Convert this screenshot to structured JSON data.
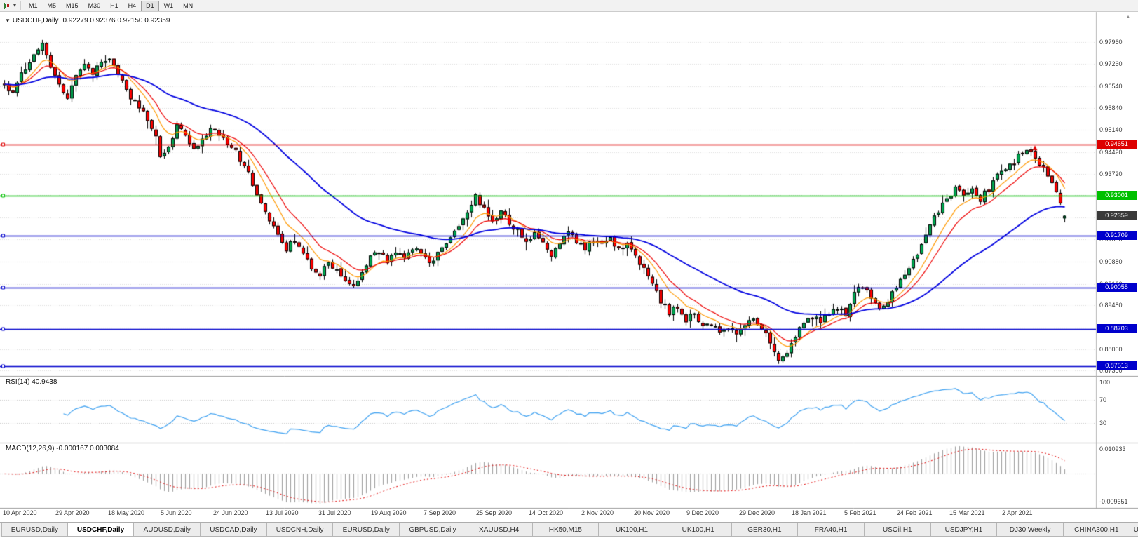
{
  "toolbar": {
    "chart_icon": "candlestick-chart",
    "caret_glyph": "▾",
    "timeframes": [
      "M1",
      "M5",
      "M15",
      "M30",
      "H1",
      "H4",
      "D1",
      "W1",
      "MN"
    ],
    "active": "D1"
  },
  "chart_header": {
    "marker_glyph": "▼",
    "title": "USDCHF,Daily",
    "ohlc": "0.92279 0.92376 0.92150 0.92359"
  },
  "price_scale": {
    "ticks": [
      "0.97960",
      "0.97260",
      "0.96540",
      "0.95840",
      "0.95140",
      "0.94420",
      "0.93720",
      "0.93020",
      "0.92300",
      "0.91600",
      "0.90880",
      "0.90160",
      "0.89480",
      "0.88760",
      "0.88060",
      "0.87380"
    ],
    "current_badge": {
      "label": "0.92359",
      "bg": "#3a3a3a"
    },
    "scroll_icon_glyph": "▴"
  },
  "rsi_panel": {
    "label": "RSI(14) 40.9438",
    "scale_labels": [
      "100",
      "70",
      "30"
    ],
    "scale_values": [
      100,
      70,
      30
    ],
    "levels": [
      70,
      30
    ],
    "line_color": "#3da0f0"
  },
  "macd_panel": {
    "label": "MACD(12,26,9) -0.000167 0.003084",
    "scale_top": "0.010933",
    "scale_bottom": "-0.009651",
    "bar_color": "#9b9b9b",
    "signal_color": "#e00000",
    "zero_line_color": "#c8c8c8"
  },
  "tabs": [
    {
      "label": "EURUSD,Daily"
    },
    {
      "label": "USDCHF,Daily",
      "active": true
    },
    {
      "label": "AUDUSD,Daily"
    },
    {
      "label": "USDCAD,Daily"
    },
    {
      "label": "USDCNH,Daily"
    },
    {
      "label": "EURUSD,Daily"
    },
    {
      "label": "GBPUSD,Daily"
    },
    {
      "label": "XAUUSD,H4"
    },
    {
      "label": "HK50,M15"
    },
    {
      "label": "UK100,H1"
    },
    {
      "label": "UK100,H1"
    },
    {
      "label": "GER30,H1"
    },
    {
      "label": "FRA40,H1"
    },
    {
      "label": "USOil,H1"
    },
    {
      "label": "USDJPY,H1"
    },
    {
      "label": "DJ30,Weekly"
    },
    {
      "label": "CHINA300,H1"
    },
    {
      "label": "U",
      "truncated": true
    }
  ],
  "chart_data": {
    "type": "candlestick",
    "symbol": "USDCHF",
    "timeframe": "Daily",
    "last_ohlc": {
      "open": 0.92279,
      "high": 0.92376,
      "low": 0.9215,
      "close": 0.92359
    },
    "n_candles": 253,
    "x_tick_labels": [
      "10 Apr 2020",
      "29 Apr 2020",
      "18 May 2020",
      "5 Jun 2020",
      "24 Jun 2020",
      "13 Jul 2020",
      "31 Jul 2020",
      "19 Aug 2020",
      "7 Sep 2020",
      "25 Sep 2020",
      "14 Oct 2020",
      "2 Nov 2020",
      "20 Nov 2020",
      "9 Dec 2020",
      "29 Dec 2020",
      "18 Jan 2021",
      "5 Feb 2021",
      "24 Feb 2021",
      "15 Mar 2021",
      "2 Apr 2021"
    ],
    "y_ticks": [
      0.9796,
      0.9726,
      0.9654,
      0.9584,
      0.9514,
      0.9442,
      0.9372,
      0.9302,
      0.923,
      0.916,
      0.9088,
      0.9016,
      0.8948,
      0.8876,
      0.8806,
      0.8738
    ],
    "up_color": "#00a651",
    "down_color": "#ff0000",
    "outline_color": "#000000",
    "moving_averages": [
      {
        "period": 8,
        "color": "#ff9900"
      },
      {
        "period": 13,
        "color": "#ee0000"
      },
      {
        "period": 45,
        "color": "#0000e0"
      }
    ],
    "horizontal_lines": [
      {
        "price": 0.94651,
        "label": "0.94651",
        "color": "#dd0000"
      },
      {
        "price": 0.93001,
        "label": "0.93001",
        "color": "#00c000"
      },
      {
        "price": 0.91709,
        "label": "0.91709",
        "color": "#0000cc"
      },
      {
        "price": 0.90055,
        "label": "0.90055",
        "color": "#0000cc"
      },
      {
        "price": 0.88703,
        "label": "0.88703",
        "color": "#0000cc"
      },
      {
        "price": 0.87513,
        "label": "0.87513",
        "color": "#0000cc"
      }
    ],
    "annotations": [
      {
        "type": "arrow-up",
        "x_index": 245,
        "price": 0.9452,
        "color": "#e00000"
      }
    ],
    "rsi_display": "40.9438",
    "macd_display": [
      "-0.000167",
      "0.003084"
    ],
    "noise_seed": 11,
    "noise_amp": 0.0011,
    "close_path": [
      [
        0,
        0.966
      ],
      [
        2,
        0.9635
      ],
      [
        4,
        0.97
      ],
      [
        6,
        0.9725
      ],
      [
        8,
        0.9772
      ],
      [
        9,
        0.979
      ],
      [
        11,
        0.9718
      ],
      [
        13,
        0.9652
      ],
      [
        15,
        0.9622
      ],
      [
        17,
        0.9688
      ],
      [
        19,
        0.9716
      ],
      [
        21,
        0.97
      ],
      [
        24,
        0.9744
      ],
      [
        26,
        0.9722
      ],
      [
        28,
        0.9662
      ],
      [
        30,
        0.962
      ],
      [
        32,
        0.9586
      ],
      [
        34,
        0.955
      ],
      [
        36,
        0.9482
      ],
      [
        37,
        0.9428
      ],
      [
        39,
        0.9468
      ],
      [
        41,
        0.952
      ],
      [
        43,
        0.9492
      ],
      [
        45,
        0.9446
      ],
      [
        47,
        0.9476
      ],
      [
        49,
        0.9514
      ],
      [
        51,
        0.95
      ],
      [
        53,
        0.947
      ],
      [
        55,
        0.944
      ],
      [
        57,
        0.94
      ],
      [
        59,
        0.9342
      ],
      [
        61,
        0.9282
      ],
      [
        63,
        0.9222
      ],
      [
        65,
        0.9172
      ],
      [
        67,
        0.913
      ],
      [
        69,
        0.9158
      ],
      [
        71,
        0.912
      ],
      [
        73,
        0.9072
      ],
      [
        75,
        0.905
      ],
      [
        77,
        0.9088
      ],
      [
        79,
        0.9064
      ],
      [
        81,
        0.903
      ],
      [
        83,
        0.9008
      ],
      [
        85,
        0.9058
      ],
      [
        87,
        0.9098
      ],
      [
        89,
        0.9124
      ],
      [
        91,
        0.9092
      ],
      [
        93,
        0.9128
      ],
      [
        95,
        0.9104
      ],
      [
        97,
        0.9138
      ],
      [
        99,
        0.9108
      ],
      [
        101,
        0.9086
      ],
      [
        103,
        0.9118
      ],
      [
        105,
        0.9148
      ],
      [
        107,
        0.9178
      ],
      [
        109,
        0.9228
      ],
      [
        111,
        0.9278
      ],
      [
        112,
        0.9298
      ],
      [
        114,
        0.9262
      ],
      [
        116,
        0.9222
      ],
      [
        118,
        0.9244
      ],
      [
        120,
        0.9212
      ],
      [
        122,
        0.919
      ],
      [
        124,
        0.9152
      ],
      [
        126,
        0.9178
      ],
      [
        128,
        0.9142
      ],
      [
        130,
        0.9112
      ],
      [
        132,
        0.9148
      ],
      [
        134,
        0.9178
      ],
      [
        136,
        0.9158
      ],
      [
        138,
        0.9132
      ],
      [
        140,
        0.9158
      ],
      [
        142,
        0.914
      ],
      [
        144,
        0.9158
      ],
      [
        146,
        0.9122
      ],
      [
        148,
        0.9148
      ],
      [
        150,
        0.9112
      ],
      [
        152,
        0.9062
      ],
      [
        154,
        0.9012
      ],
      [
        156,
        0.8962
      ],
      [
        158,
        0.8922
      ],
      [
        160,
        0.8942
      ],
      [
        162,
        0.8902
      ],
      [
        164,
        0.8922
      ],
      [
        166,
        0.8872
      ],
      [
        168,
        0.8892
      ],
      [
        170,
        0.8852
      ],
      [
        172,
        0.888
      ],
      [
        174,
        0.8862
      ],
      [
        176,
        0.8886
      ],
      [
        178,
        0.8906
      ],
      [
        180,
        0.8872
      ],
      [
        182,
        0.8832
      ],
      [
        184,
        0.8776
      ],
      [
        186,
        0.8796
      ],
      [
        188,
        0.885
      ],
      [
        190,
        0.8886
      ],
      [
        192,
        0.891
      ],
      [
        194,
        0.889
      ],
      [
        196,
        0.8926
      ],
      [
        198,
        0.8946
      ],
      [
        200,
        0.8922
      ],
      [
        202,
        0.899
      ],
      [
        204,
        0.9012
      ],
      [
        206,
        0.8962
      ],
      [
        208,
        0.8932
      ],
      [
        210,
        0.8966
      ],
      [
        212,
        0.9002
      ],
      [
        214,
        0.9042
      ],
      [
        216,
        0.9092
      ],
      [
        218,
        0.9152
      ],
      [
        220,
        0.9202
      ],
      [
        222,
        0.9252
      ],
      [
        224,
        0.9292
      ],
      [
        226,
        0.9322
      ],
      [
        228,
        0.9292
      ],
      [
        230,
        0.9322
      ],
      [
        232,
        0.9292
      ],
      [
        234,
        0.9322
      ],
      [
        236,
        0.9362
      ],
      [
        238,
        0.9392
      ],
      [
        240,
        0.9412
      ],
      [
        242,
        0.9442
      ],
      [
        243,
        0.9456
      ],
      [
        245,
        0.9412
      ],
      [
        247,
        0.9396
      ],
      [
        249,
        0.9342
      ],
      [
        251,
        0.9272
      ],
      [
        252,
        0.92359
      ]
    ]
  }
}
